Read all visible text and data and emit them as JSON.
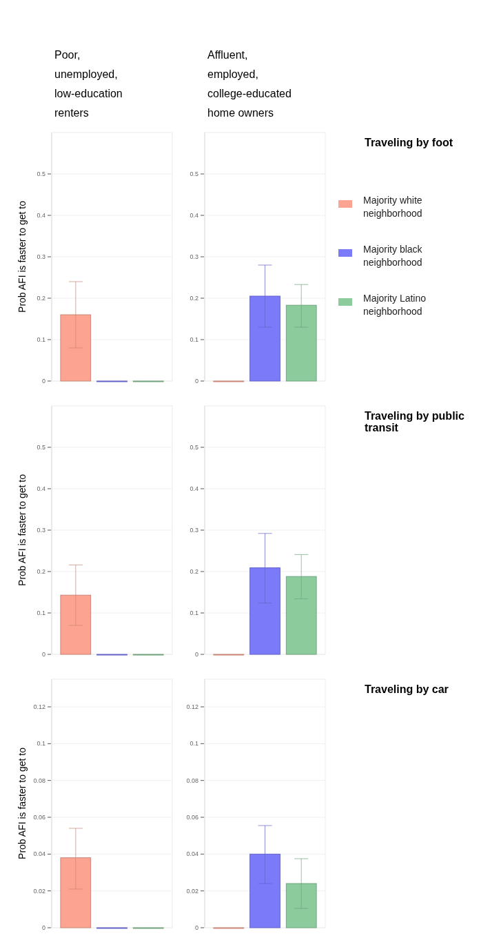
{
  "chart_data": [
    {
      "type": "bar",
      "title": "Poor, unemployed, low-education renters",
      "ylabel": "Prob AFI is faster to get to",
      "categories": [
        null
      ],
      "ylim": [
        0,
        0.6
      ],
      "yticks": [
        0,
        0.1,
        0.2,
        0.3,
        0.4,
        0.5
      ],
      "grid": "y",
      "legend": false,
      "series": [
        {
          "color": "#fca491",
          "values": [
            0.16
          ],
          "errors": [
            [
              0.08,
              0.24
            ]
          ]
        },
        {
          "color": "#7b7bf9",
          "values": [
            0
          ],
          "errors": [
            null
          ]
        },
        {
          "color": "#8ccb9b",
          "values": [
            0
          ],
          "errors": [
            null
          ]
        }
      ]
    },
    {
      "type": "bar",
      "title": "Affluent, employed, college-educated home owners",
      "categories": [
        null
      ],
      "ylim": [
        0,
        0.6
      ],
      "yticks": [
        0,
        0.1,
        0.2,
        0.3,
        0.4,
        0.5
      ],
      "grid": "y",
      "legend": "right",
      "series": [
        {
          "name": "Majority white neighborhood",
          "color": "#fca491",
          "values": [
            0
          ],
          "errors": [
            null
          ]
        },
        {
          "name": "Majority black neighborhood",
          "color": "#7b7bf9",
          "values": [
            0.205
          ],
          "errors": [
            [
              0.13,
              0.28
            ]
          ]
        },
        {
          "name": "Majority Latino neighborhood",
          "color": "#8ccb9b",
          "values": [
            0.183
          ],
          "errors": [
            [
              0.13,
              0.233
            ]
          ]
        }
      ]
    },
    {
      "type": "bar",
      "ylabel": "Prob AFI is faster to get to",
      "categories": [
        null
      ],
      "ylim": [
        0,
        0.6
      ],
      "yticks": [
        0,
        0.1,
        0.2,
        0.3,
        0.4,
        0.5
      ],
      "grid": "y",
      "legend": false,
      "series": [
        {
          "color": "#fca491",
          "values": [
            0.143
          ],
          "errors": [
            [
              0.07,
              0.216
            ]
          ]
        },
        {
          "color": "#7b7bf9",
          "values": [
            0
          ],
          "errors": [
            null
          ]
        },
        {
          "color": "#8ccb9b",
          "values": [
            0
          ],
          "errors": [
            null
          ]
        }
      ]
    },
    {
      "type": "bar",
      "categories": [
        null
      ],
      "ylim": [
        0,
        0.6
      ],
      "yticks": [
        0,
        0.1,
        0.2,
        0.3,
        0.4,
        0.5
      ],
      "grid": "y",
      "legend": false,
      "series": [
        {
          "color": "#fca491",
          "values": [
            0
          ],
          "errors": [
            null
          ]
        },
        {
          "color": "#7b7bf9",
          "values": [
            0.209
          ],
          "errors": [
            [
              0.124,
              0.292
            ]
          ]
        },
        {
          "color": "#8ccb9b",
          "values": [
            0.188
          ],
          "errors": [
            [
              0.134,
              0.241
            ]
          ]
        }
      ]
    },
    {
      "type": "bar",
      "ylabel": "Prob AFI is faster to get to",
      "categories": [
        null
      ],
      "ylim": [
        0,
        0.135
      ],
      "yticks": [
        0,
        0.02,
        0.04,
        0.06,
        0.08,
        0.1,
        0.12
      ],
      "grid": "y",
      "legend": false,
      "series": [
        {
          "color": "#fca491",
          "values": [
            0.038
          ],
          "errors": [
            [
              0.021,
              0.054
            ]
          ]
        },
        {
          "color": "#7b7bf9",
          "values": [
            0
          ],
          "errors": [
            null
          ]
        },
        {
          "color": "#8ccb9b",
          "values": [
            0
          ],
          "errors": [
            null
          ]
        }
      ]
    },
    {
      "type": "bar",
      "categories": [
        null
      ],
      "ylim": [
        0,
        0.135
      ],
      "yticks": [
        0,
        0.02,
        0.04,
        0.06,
        0.08,
        0.1,
        0.12
      ],
      "grid": "y",
      "legend": false,
      "series": [
        {
          "color": "#fca491",
          "values": [
            0
          ],
          "errors": [
            null
          ]
        },
        {
          "color": "#7b7bf9",
          "values": [
            0.04
          ],
          "errors": [
            [
              0.024,
              0.0555
            ]
          ]
        },
        {
          "color": "#8ccb9b",
          "values": [
            0.024
          ],
          "errors": [
            [
              0.0105,
              0.0375
            ]
          ]
        }
      ]
    },
    {
      "type": "other",
      "annotations": [
        "Traveling by foot",
        "Traveling by public transit",
        "Traveling by car"
      ]
    }
  ]
}
